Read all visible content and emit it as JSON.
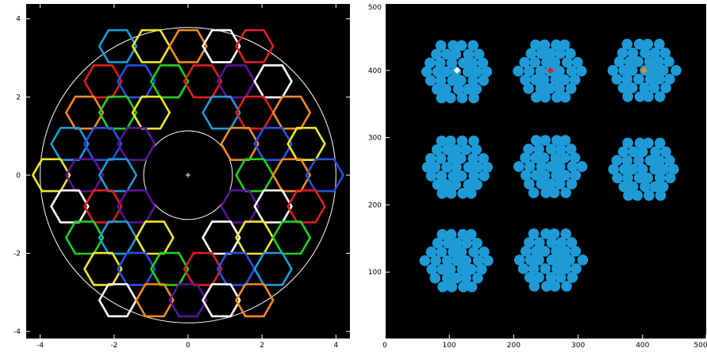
{
  "chart_data": [
    {
      "type": "scatter",
      "description_of_marks": "hexagonal segments arranged in annulus",
      "xlim": [
        -4.4,
        4.4
      ],
      "ylim": [
        -4.2,
        4.4
      ],
      "xticks": [
        -4,
        -2,
        0,
        2,
        4
      ],
      "yticks": [
        -4,
        -2,
        0,
        2,
        4
      ],
      "xtick_labels": [
        "-4",
        "-2",
        "0",
        "2",
        "4"
      ],
      "ytick_labels": [
        "-4",
        "-2",
        "0",
        "2",
        "4"
      ],
      "outer_circle_radius": 4.0,
      "inner_circle_radius": 1.2,
      "segments": [
        {
          "x": -1.9,
          "y": 3.3,
          "color": "#1e9bd7"
        },
        {
          "x": -1.0,
          "y": 3.3,
          "color": "#f0e62a"
        },
        {
          "x": 0.0,
          "y": 3.3,
          "color": "#f08c1e"
        },
        {
          "x": 0.9,
          "y": 3.3,
          "color": "#ffffff"
        },
        {
          "x": 1.8,
          "y": 3.3,
          "color": "#e01e1e"
        },
        {
          "x": -2.3,
          "y": 2.4,
          "color": "#e01e1e"
        },
        {
          "x": -1.4,
          "y": 2.4,
          "color": "#2850e0"
        },
        {
          "x": -0.5,
          "y": 2.4,
          "color": "#1ed21e"
        },
        {
          "x": 0.4,
          "y": 2.4,
          "color": "#e01e1e"
        },
        {
          "x": 1.3,
          "y": 2.4,
          "color": "#5a1496"
        },
        {
          "x": 2.3,
          "y": 2.4,
          "color": "#ffffff"
        },
        {
          "x": -2.8,
          "y": 1.6,
          "color": "#f08c1e"
        },
        {
          "x": -1.9,
          "y": 1.6,
          "color": "#1ed21e"
        },
        {
          "x": -1.0,
          "y": 1.6,
          "color": "#f0e62a"
        },
        {
          "x": 0.9,
          "y": 1.6,
          "color": "#1e9bd7"
        },
        {
          "x": 1.8,
          "y": 1.6,
          "color": "#e01e1e"
        },
        {
          "x": 2.8,
          "y": 1.6,
          "color": "#f08c1e"
        },
        {
          "x": -3.2,
          "y": 0.8,
          "color": "#1e9bd7"
        },
        {
          "x": -2.3,
          "y": 0.8,
          "color": "#2850e0"
        },
        {
          "x": -1.4,
          "y": 0.8,
          "color": "#5a1496"
        },
        {
          "x": 1.4,
          "y": 0.8,
          "color": "#f08c1e"
        },
        {
          "x": 2.3,
          "y": 0.8,
          "color": "#2850e0"
        },
        {
          "x": 3.2,
          "y": 0.8,
          "color": "#f0e62a"
        },
        {
          "x": -3.7,
          "y": 0.0,
          "color": "#f0e62a"
        },
        {
          "x": -2.8,
          "y": 0.0,
          "color": "#5a1496"
        },
        {
          "x": -1.9,
          "y": 0.0,
          "color": "#1e9bd7"
        },
        {
          "x": 1.8,
          "y": 0.0,
          "color": "#1ed21e"
        },
        {
          "x": 2.8,
          "y": 0.0,
          "color": "#f08c1e"
        },
        {
          "x": 3.7,
          "y": 0.0,
          "color": "#2850e0"
        },
        {
          "x": -3.2,
          "y": -0.8,
          "color": "#ffffff"
        },
        {
          "x": -2.3,
          "y": -0.8,
          "color": "#e01e1e"
        },
        {
          "x": -1.4,
          "y": -0.8,
          "color": "#5a1496"
        },
        {
          "x": 1.4,
          "y": -0.8,
          "color": "#5a1496"
        },
        {
          "x": 2.3,
          "y": -0.8,
          "color": "#ffffff"
        },
        {
          "x": 3.2,
          "y": -0.8,
          "color": "#e01e1e"
        },
        {
          "x": -2.8,
          "y": -1.6,
          "color": "#1ed21e"
        },
        {
          "x": -1.9,
          "y": -1.6,
          "color": "#1e9bd7"
        },
        {
          "x": -0.9,
          "y": -1.6,
          "color": "#f0e62a"
        },
        {
          "x": 0.9,
          "y": -1.6,
          "color": "#ffffff"
        },
        {
          "x": 1.8,
          "y": -1.6,
          "color": "#f0e62a"
        },
        {
          "x": 2.8,
          "y": -1.6,
          "color": "#1ed21e"
        },
        {
          "x": -2.3,
          "y": -2.4,
          "color": "#f0e62a"
        },
        {
          "x": -1.4,
          "y": -2.4,
          "color": "#2850e0"
        },
        {
          "x": -0.5,
          "y": -2.4,
          "color": "#1ed21e"
        },
        {
          "x": 0.4,
          "y": -2.4,
          "color": "#e01e1e"
        },
        {
          "x": 1.3,
          "y": -2.4,
          "color": "#2850e0"
        },
        {
          "x": 2.3,
          "y": -2.4,
          "color": "#1e9bd7"
        },
        {
          "x": -1.9,
          "y": -3.2,
          "color": "#ffffff"
        },
        {
          "x": -0.9,
          "y": -3.2,
          "color": "#f08c1e"
        },
        {
          "x": 0.0,
          "y": -3.2,
          "color": "#5a1496"
        },
        {
          "x": 0.9,
          "y": -3.2,
          "color": "#ffffff"
        },
        {
          "x": 1.8,
          "y": -3.2,
          "color": "#f08c1e"
        }
      ]
    },
    {
      "type": "scatter",
      "xlim": [
        0,
        500
      ],
      "ylim": [
        0,
        500
      ],
      "xticks": [
        0,
        100,
        200,
        300,
        400,
        500
      ],
      "yticks": [
        100,
        200,
        300,
        400,
        500
      ],
      "xtick_labels": [
        "0",
        "100",
        "200",
        "300",
        "400",
        "500"
      ],
      "ytick_labels": [
        "100",
        "200",
        "300",
        "400",
        "500"
      ],
      "marker_color": "#1e9bd7",
      "clusters": [
        {
          "center": [
            112,
            400
          ],
          "highlight": "#ffffff"
        },
        {
          "center": [
            257,
            400
          ],
          "highlight": "#e01e1e"
        },
        {
          "center": [
            402,
            400
          ],
          "highlight": "#f08c1e"
        },
        {
          "center": [
            112,
            255
          ],
          "highlight": null
        },
        {
          "center": [
            257,
            255
          ],
          "highlight": null
        },
        {
          "center": [
            402,
            255
          ],
          "highlight": null
        },
        {
          "center": [
            112,
            118
          ],
          "highlight": null
        },
        {
          "center": [
            257,
            118
          ],
          "highlight": null
        }
      ],
      "cluster_offsets": [
        [
          0,
          0
        ],
        [
          16,
          0
        ],
        [
          -16,
          0
        ],
        [
          8,
          13
        ],
        [
          -8,
          13
        ],
        [
          8,
          -13
        ],
        [
          -8,
          -13
        ],
        [
          32,
          0
        ],
        [
          -32,
          0
        ],
        [
          24,
          13
        ],
        [
          -24,
          13
        ],
        [
          24,
          -13
        ],
        [
          -24,
          -13
        ],
        [
          16,
          26
        ],
        [
          -16,
          26
        ],
        [
          0,
          26
        ],
        [
          16,
          -26
        ],
        [
          -16,
          -26
        ],
        [
          0,
          -26
        ],
        [
          40,
          13
        ],
        [
          -40,
          13
        ],
        [
          40,
          -13
        ],
        [
          -40,
          -13
        ],
        [
          32,
          26
        ],
        [
          -32,
          26
        ],
        [
          32,
          -26
        ],
        [
          -32,
          -26
        ],
        [
          8,
          39
        ],
        [
          -8,
          39
        ],
        [
          8,
          -39
        ],
        [
          -8,
          -39
        ],
        [
          24,
          39
        ],
        [
          -24,
          39
        ],
        [
          24,
          -39
        ],
        [
          -24,
          -39
        ],
        [
          48,
          0
        ],
        [
          -48,
          0
        ]
      ]
    }
  ]
}
